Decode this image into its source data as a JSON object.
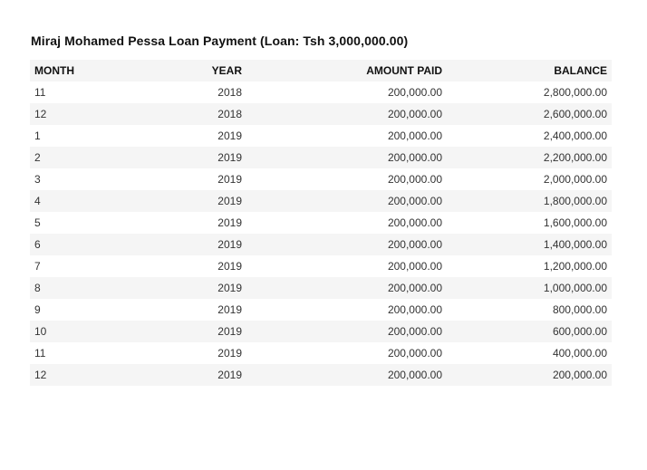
{
  "document": {
    "title": "Miraj Mohamed Pessa Loan Payment (Loan: Tsh 3,000,000.00)"
  },
  "table": {
    "columns": [
      "MONTH",
      "YEAR",
      "AMOUNT PAID",
      "BALANCE"
    ],
    "rows": [
      [
        "11",
        "2018",
        "200,000.00",
        "2,800,000.00"
      ],
      [
        "12",
        "2018",
        "200,000.00",
        "2,600,000.00"
      ],
      [
        "1",
        "2019",
        "200,000.00",
        "2,400,000.00"
      ],
      [
        "2",
        "2019",
        "200,000.00",
        "2,200,000.00"
      ],
      [
        "3",
        "2019",
        "200,000.00",
        "2,000,000.00"
      ],
      [
        "4",
        "2019",
        "200,000.00",
        "1,800,000.00"
      ],
      [
        "5",
        "2019",
        "200,000.00",
        "1,600,000.00"
      ],
      [
        "6",
        "2019",
        "200,000.00",
        "1,400,000.00"
      ],
      [
        "7",
        "2019",
        "200,000.00",
        "1,200,000.00"
      ],
      [
        "8",
        "2019",
        "200,000.00",
        "1,000,000.00"
      ],
      [
        "9",
        "2019",
        "200,000.00",
        "800,000.00"
      ],
      [
        "10",
        "2019",
        "200,000.00",
        "600,000.00"
      ],
      [
        "11",
        "2019",
        "200,000.00",
        "400,000.00"
      ],
      [
        "12",
        "2019",
        "200,000.00",
        "200,000.00"
      ]
    ]
  },
  "colors": {
    "stripe": "#f5f5f5",
    "text": "#333333",
    "heading": "#111111"
  }
}
